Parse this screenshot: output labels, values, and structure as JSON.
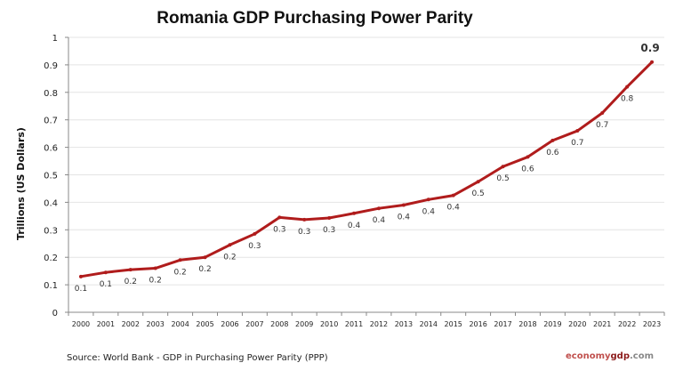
{
  "chart_data": {
    "type": "line",
    "title": "Romania GDP Purchasing Power Parity",
    "xlabel": "",
    "ylabel": "Trillions (US Dollars)",
    "ylim": [
      0,
      1
    ],
    "yticks": [
      "0",
      "0.1",
      "0.2",
      "0.3",
      "0.4",
      "0.5",
      "0.6",
      "0.7",
      "0.8",
      "0.9",
      "1"
    ],
    "grid": true,
    "categories": [
      "2000",
      "2001",
      "2002",
      "2003",
      "2004",
      "2005",
      "2006",
      "2007",
      "2008",
      "2009",
      "2010",
      "2011",
      "2012",
      "2013",
      "2014",
      "2015",
      "2016",
      "2017",
      "2018",
      "2019",
      "2020",
      "2021",
      "2022",
      "2023"
    ],
    "values": [
      0.13,
      0.145,
      0.155,
      0.16,
      0.19,
      0.2,
      0.245,
      0.285,
      0.345,
      0.337,
      0.343,
      0.36,
      0.378,
      0.39,
      0.41,
      0.425,
      0.475,
      0.53,
      0.565,
      0.625,
      0.66,
      0.725,
      0.82,
      0.91
    ],
    "data_labels": [
      "0.1",
      "0.1",
      "0.2",
      "0.2",
      "0.2",
      "0.2",
      "0.2",
      "0.3",
      "0.3",
      "0.3",
      "0.3",
      "0.4",
      "0.4",
      "0.4",
      "0.4",
      "0.4",
      "0.5",
      "0.5",
      "0.6",
      "0.6",
      "0.7",
      "0.7",
      "0.8",
      "0.9"
    ],
    "line_color": "#b01c1c"
  },
  "source": "Source:  World Bank -  GDP  in Purchasing Power Parity (PPP)",
  "brand": {
    "part1": "economy",
    "part2": "gdp",
    "part3": ".com"
  }
}
